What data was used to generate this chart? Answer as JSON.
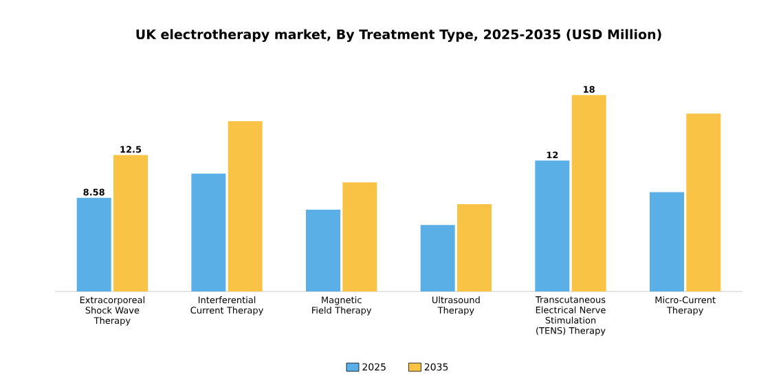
{
  "chart_data": {
    "type": "bar",
    "title": "UK electrotherapy market, By Treatment Type, 2025-2035 (USD Million)",
    "categories": [
      "Extracorporeal Shock Wave Therapy",
      "Interferential Current Therapy",
      "Magnetic Field Therapy",
      "Ultrasound Therapy",
      "Transcutaneous Electrical Nerve Stimulation (TENS) Therapy",
      "Micro-Current Therapy"
    ],
    "series": [
      {
        "name": "2025",
        "color": "#5aafe6",
        "values": [
          8.58,
          10.8,
          7.5,
          6.1,
          12,
          9.1
        ],
        "value_labels": [
          "8.58",
          null,
          null,
          null,
          "12",
          null
        ]
      },
      {
        "name": "2035",
        "color": "#f9c446",
        "values": [
          12.5,
          15.6,
          10.0,
          8.0,
          18,
          16.3
        ],
        "value_labels": [
          "12.5",
          null,
          null,
          null,
          "18",
          null
        ]
      }
    ],
    "legend": "bottom"
  }
}
